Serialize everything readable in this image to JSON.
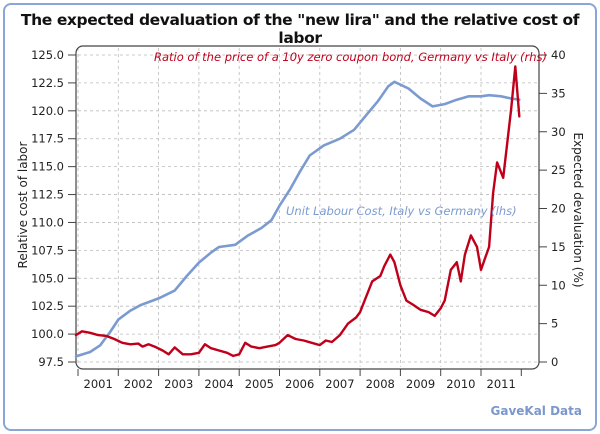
{
  "title": "The expected devaluation of the \"new lira\" and the relative cost of labor",
  "source": "GaveKal Data",
  "chart_data": {
    "type": "line",
    "title": "The expected devaluation of the \"new lira\" and the relative cost of labor",
    "xlabel": "",
    "ylabel": "Relative cost of labor",
    "y2label": "Expected devaluation (%)",
    "x_tick_labels": [
      "2001",
      "2002",
      "2003",
      "2004",
      "2005",
      "2006",
      "2007",
      "2008",
      "2009",
      "2010",
      "2011"
    ],
    "xlim": [
      2000.9,
      2011.6
    ],
    "ylim": [
      97.5,
      125.0
    ],
    "y_ticks": [
      "97.5",
      "100.0",
      "102.5",
      "105.0",
      "107.5",
      "110.0",
      "112.5",
      "115.0",
      "117.5",
      "120.0",
      "122.5",
      "125.0"
    ],
    "y2lim": [
      0,
      40
    ],
    "y2_ticks": [
      "0",
      "5",
      "10",
      "15",
      "20",
      "25",
      "30",
      "35",
      "40"
    ],
    "grid": true,
    "series": [
      {
        "name": "Unit Labour Cost, Italy vs Germany (lhs)",
        "axis": "left",
        "color": "#7b9bd0",
        "x": [
          2000.95,
          2001.3,
          2001.55,
          2001.8,
          2002.0,
          2002.3,
          2002.55,
          2003.0,
          2003.4,
          2003.7,
          2004.0,
          2004.3,
          2004.5,
          2004.9,
          2005.2,
          2005.55,
          2005.8,
          2006.0,
          2006.25,
          2006.5,
          2006.75,
          2007.1,
          2007.5,
          2007.85,
          2008.15,
          2008.45,
          2008.7,
          2008.85,
          2009.2,
          2009.5,
          2009.8,
          2010.1,
          2010.4,
          2010.7,
          2011.0,
          2011.2,
          2011.5,
          2011.75,
          2011.95
        ],
        "values": [
          98.0,
          98.4,
          99.0,
          100.2,
          101.3,
          102.1,
          102.6,
          103.2,
          103.9,
          105.2,
          106.4,
          107.3,
          107.8,
          108.0,
          108.8,
          109.5,
          110.2,
          111.5,
          112.9,
          114.5,
          116.0,
          116.9,
          117.5,
          118.3,
          119.6,
          120.9,
          122.2,
          122.6,
          122.0,
          121.1,
          120.4,
          120.6,
          121.0,
          121.3,
          121.3,
          121.4,
          121.3,
          121.1,
          121.0
        ]
      },
      {
        "name": "Ratio of the price of a 10y zero coupon bond, Germany vs Italy (rhs)",
        "axis": "right",
        "color": "#c0001a",
        "x": [
          2000.95,
          2001.1,
          2001.3,
          2001.5,
          2001.7,
          2001.9,
          2002.1,
          2002.3,
          2002.5,
          2002.6,
          2002.75,
          2002.9,
          2003.1,
          2003.25,
          2003.4,
          2003.6,
          2003.8,
          2004.0,
          2004.15,
          2004.3,
          2004.5,
          2004.7,
          2004.85,
          2005.0,
          2005.15,
          2005.3,
          2005.5,
          2005.7,
          2005.9,
          2006.0,
          2006.2,
          2006.4,
          2006.6,
          2006.8,
          2007.0,
          2007.15,
          2007.3,
          2007.5,
          2007.7,
          2007.9,
          2008.0,
          2008.15,
          2008.3,
          2008.5,
          2008.6,
          2008.75,
          2008.85,
          2009.0,
          2009.15,
          2009.3,
          2009.5,
          2009.7,
          2009.85,
          2010.0,
          2010.1,
          2010.25,
          2010.4,
          2010.5,
          2010.6,
          2010.75,
          2010.9,
          2011.0,
          2011.1,
          2011.2,
          2011.3,
          2011.4,
          2011.55,
          2011.65,
          2011.75,
          2011.85,
          2011.95
        ],
        "values": [
          3.5,
          4.0,
          3.8,
          3.5,
          3.4,
          3.0,
          2.5,
          2.3,
          2.4,
          2.0,
          2.3,
          2.0,
          1.5,
          1.0,
          1.9,
          1.0,
          1.0,
          1.2,
          2.3,
          1.8,
          1.5,
          1.2,
          0.8,
          1.0,
          2.5,
          2.0,
          1.8,
          2.0,
          2.2,
          2.5,
          3.5,
          3.0,
          2.8,
          2.5,
          2.2,
          2.8,
          2.6,
          3.5,
          5.0,
          5.8,
          6.5,
          8.5,
          10.5,
          11.2,
          12.5,
          14.0,
          13.0,
          10.0,
          8.0,
          7.5,
          6.8,
          6.5,
          6.0,
          7.0,
          8.0,
          12.0,
          13.0,
          10.5,
          14.0,
          16.5,
          15.0,
          12.0,
          13.5,
          15.0,
          22.0,
          26.0,
          24.0,
          28.5,
          33.0,
          38.5,
          32.0
        ]
      }
    ],
    "annotations": [
      {
        "text": "Ratio of the price of a 10y zero coupon bond, Germany vs Italy (rhs)",
        "color": "#c0001a"
      },
      {
        "text": "Unit Labour Cost, Italy vs Germany (lhs)",
        "color": "#7b9bd0"
      }
    ]
  }
}
